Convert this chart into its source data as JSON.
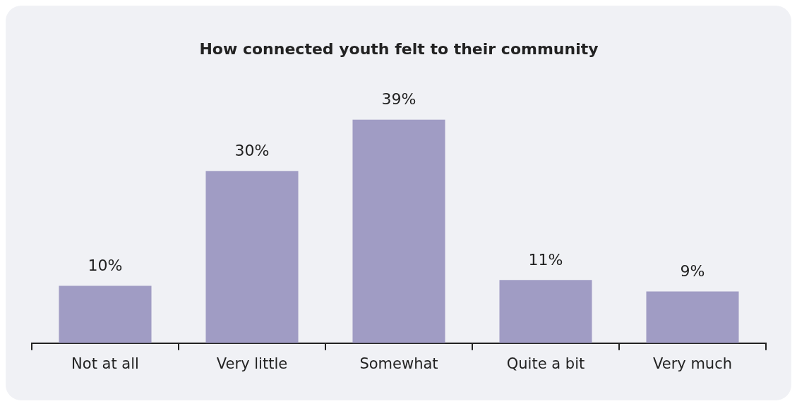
{
  "chart_data": {
    "type": "bar",
    "title": "How connected youth felt to their community",
    "categories": [
      "Not at all",
      "Very little",
      "Somewhat",
      "Quite a bit",
      "Very much"
    ],
    "values": [
      10,
      30,
      39,
      11,
      9
    ],
    "value_labels": [
      "10%",
      "30%",
      "39%",
      "11%",
      "9%"
    ],
    "color": "#a09cc4",
    "tick_labels": "x",
    "grid": false,
    "legend": false
  }
}
